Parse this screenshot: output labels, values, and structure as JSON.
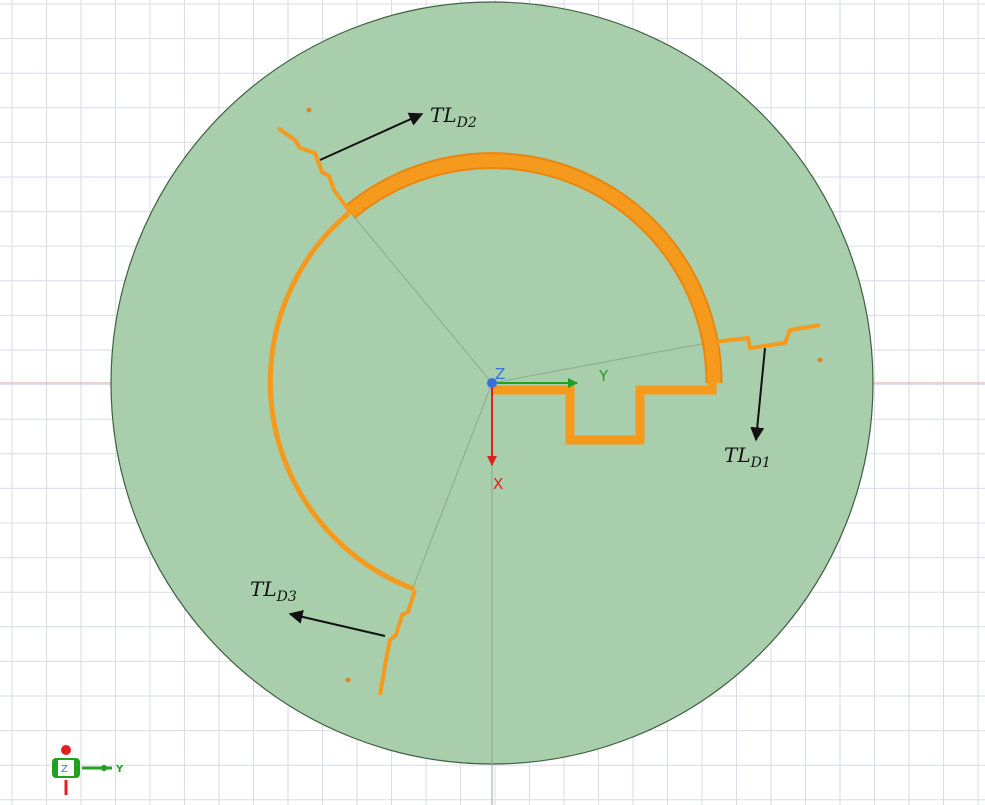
{
  "labels": [
    {
      "text": "TL",
      "sub": "D2"
    },
    {
      "text": "TL",
      "sub": "D1"
    },
    {
      "text": "TL",
      "sub": "D3"
    }
  ],
  "axes": {
    "z": "Z",
    "y": "Y",
    "x": "X"
  },
  "triad": {
    "z": "Z",
    "y": "Y"
  }
}
